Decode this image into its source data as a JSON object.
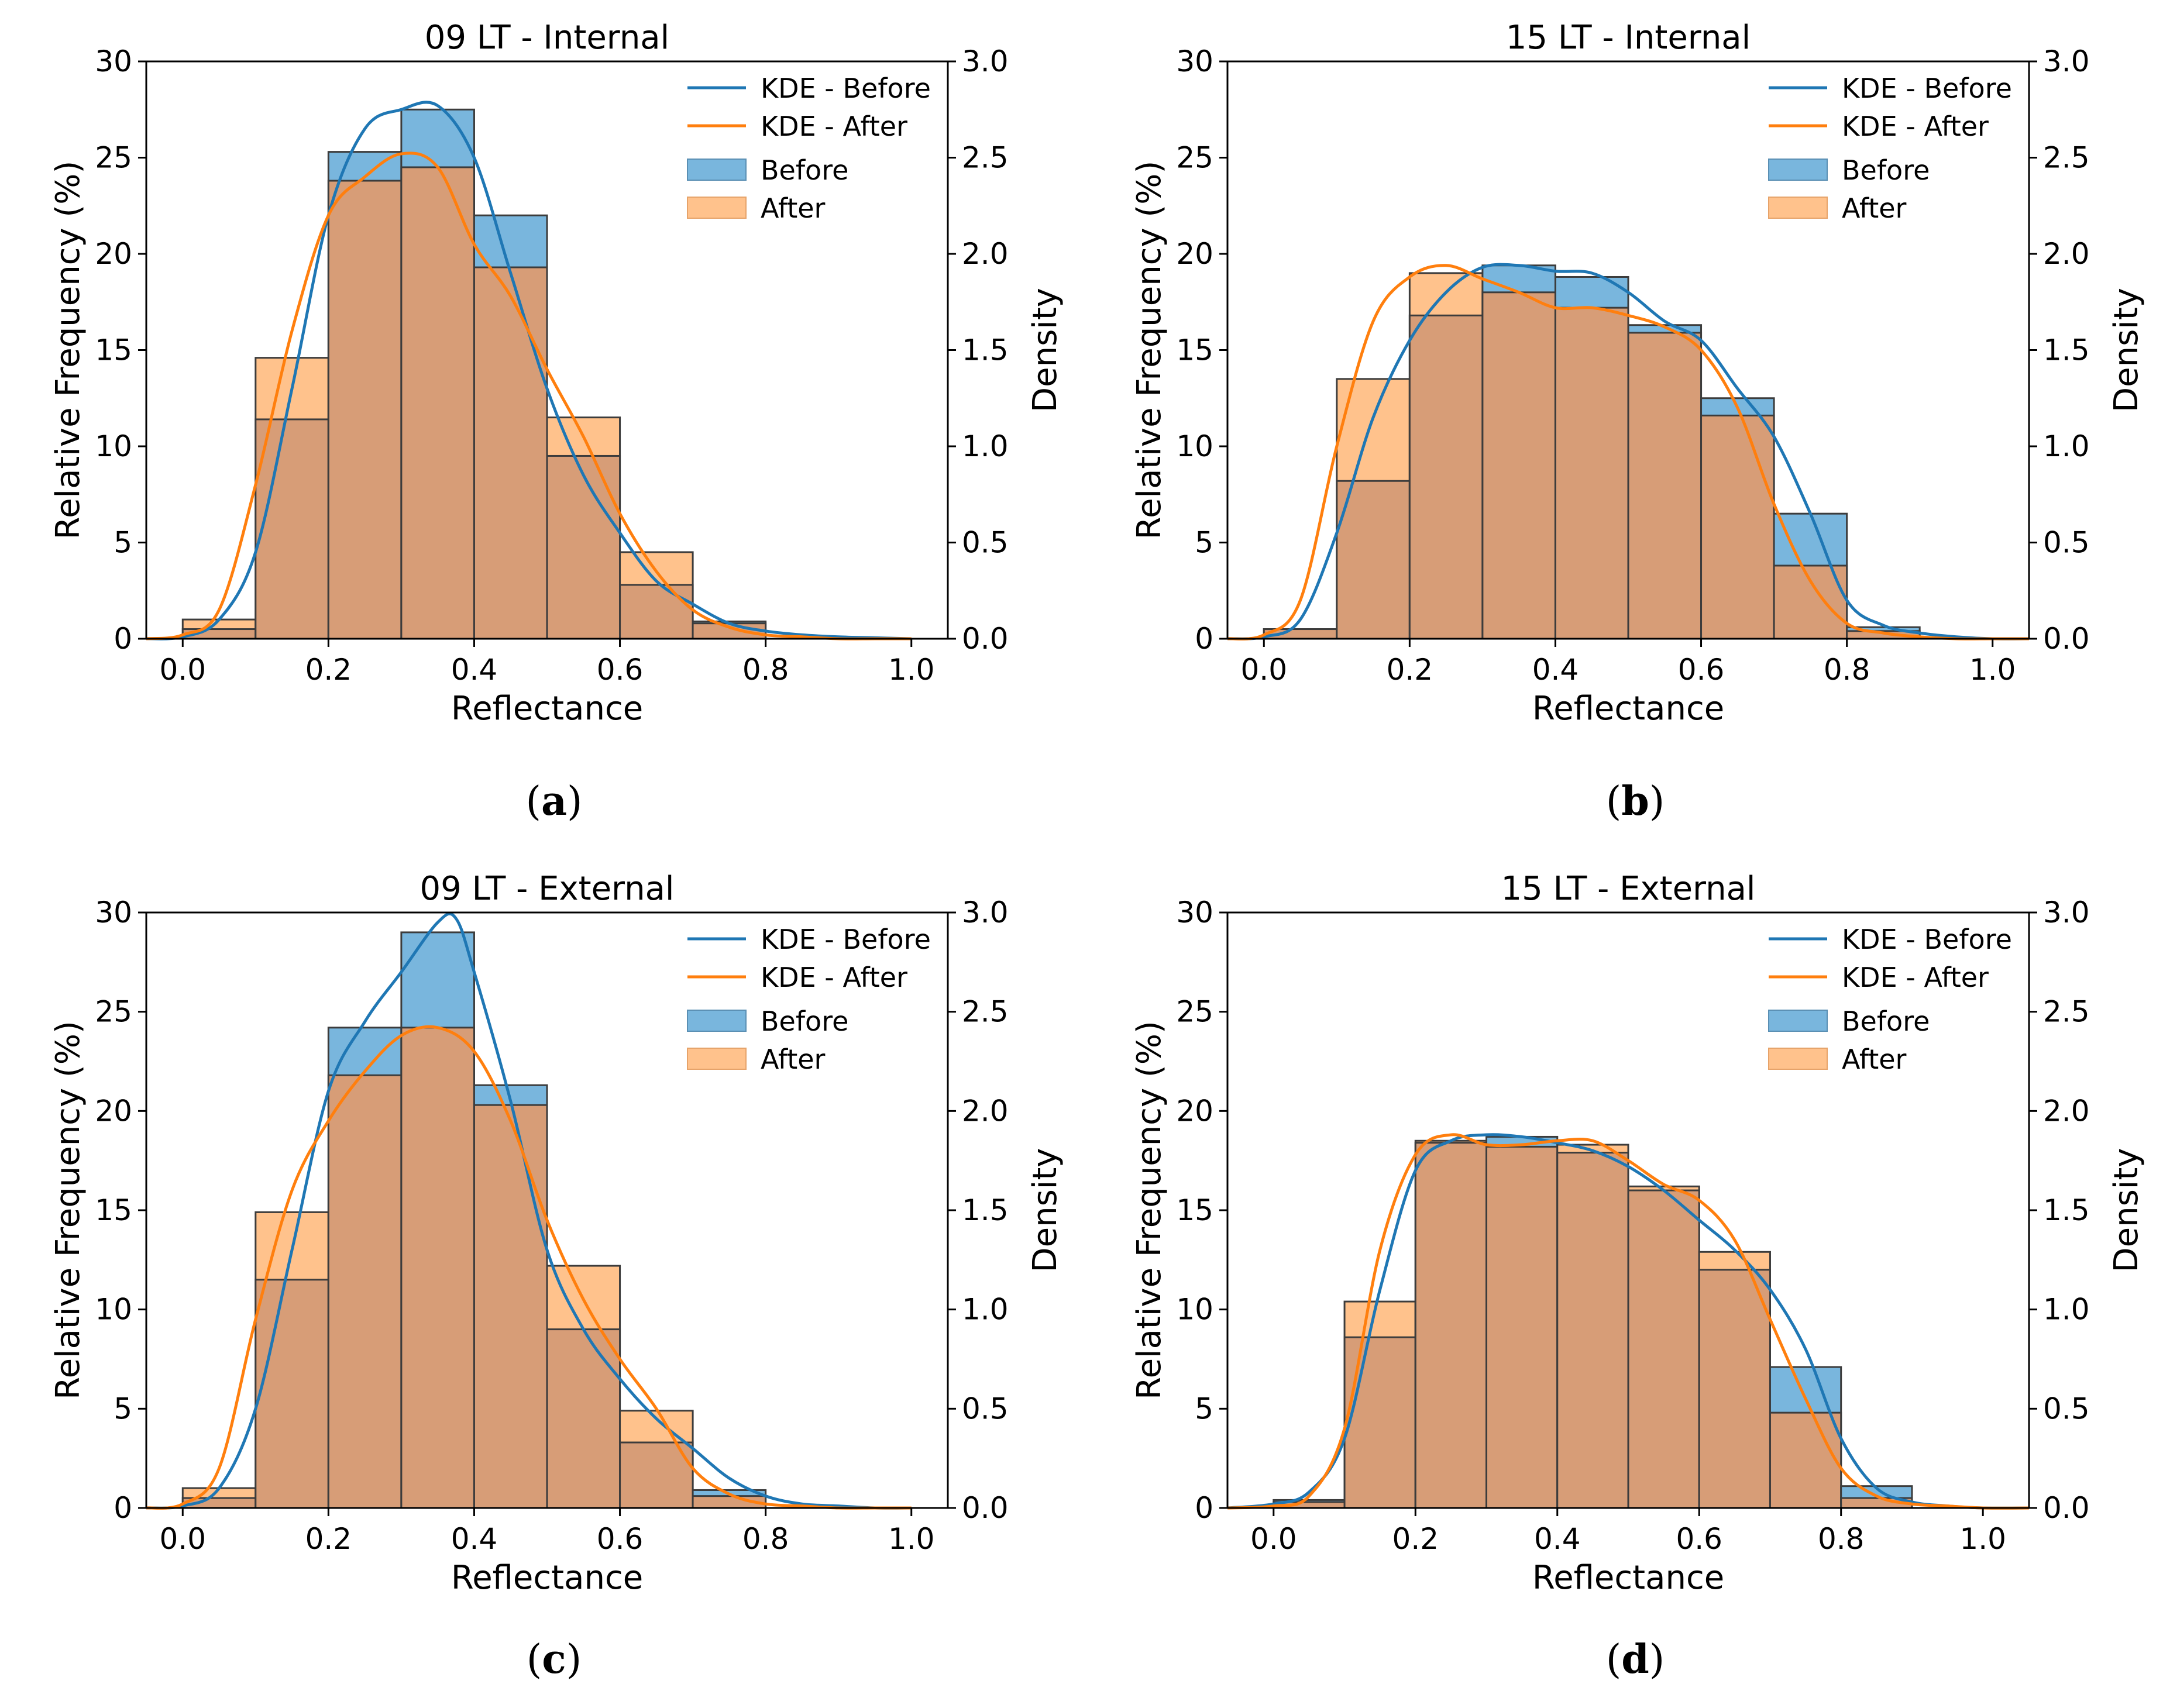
{
  "figure": {
    "colors": {
      "before": "#1f77b4",
      "after": "#ff7f0e",
      "before_fill": "#79b6dd",
      "after_fill": "#ffc28c",
      "overlap_fill": "#d79d77",
      "edge": "#3c3c3c"
    }
  },
  "chart_data": [
    {
      "id": "a",
      "type": "histogram",
      "title": "09 LT - Internal",
      "caption": "a",
      "xlabel": "Reflectance",
      "ylabel": "Relative Frequency (%)",
      "y2label": "Density",
      "xlim": [
        -0.05,
        1.05
      ],
      "ylim": [
        0,
        30
      ],
      "y2lim": [
        0,
        3.0
      ],
      "xticks": [
        "0.0",
        "0.2",
        "0.4",
        "0.6",
        "0.8",
        "1.0"
      ],
      "xtick_values": [
        0,
        0.2,
        0.4,
        0.6,
        0.8,
        1.0
      ],
      "yticks": [
        "0",
        "5",
        "10",
        "15",
        "20",
        "25",
        "30"
      ],
      "y2ticks": [
        "0.0",
        "0.5",
        "1.0",
        "1.5",
        "2.0",
        "2.5",
        "3.0"
      ],
      "legend": [
        "KDE - Before",
        "KDE - After",
        "Before",
        "After"
      ],
      "legend_position": "top-right",
      "bin_edges": [
        0,
        0.1,
        0.2,
        0.3,
        0.4,
        0.5,
        0.6,
        0.7,
        0.8
      ],
      "series": [
        {
          "name": "Before",
          "values": [
            0.5,
            11.4,
            25.3,
            27.5,
            22.0,
            9.5,
            2.8,
            0.9
          ]
        },
        {
          "name": "After",
          "values": [
            1.0,
            14.6,
            23.8,
            24.5,
            19.3,
            11.5,
            4.5,
            0.8
          ]
        }
      ],
      "kde": [
        {
          "name": "KDE - Before",
          "x": [
            -0.05,
            0.0,
            0.05,
            0.1,
            0.15,
            0.2,
            0.25,
            0.3,
            0.35,
            0.4,
            0.45,
            0.5,
            0.55,
            0.6,
            0.65,
            0.7,
            0.75,
            0.8,
            0.85,
            0.9,
            0.95,
            1.0
          ],
          "y": [
            0.0,
            0.01,
            0.1,
            0.45,
            1.3,
            2.2,
            2.65,
            2.75,
            2.77,
            2.5,
            1.9,
            1.3,
            0.85,
            0.55,
            0.3,
            0.18,
            0.08,
            0.04,
            0.02,
            0.01,
            0.005,
            0.0
          ]
        },
        {
          "name": "KDE - After",
          "x": [
            -0.05,
            0.0,
            0.05,
            0.1,
            0.15,
            0.2,
            0.25,
            0.3,
            0.35,
            0.4,
            0.45,
            0.5,
            0.55,
            0.6,
            0.65,
            0.7,
            0.75,
            0.8,
            0.85,
            0.9,
            0.95,
            1.0
          ],
          "y": [
            0.0,
            0.02,
            0.15,
            0.8,
            1.6,
            2.2,
            2.4,
            2.52,
            2.45,
            2.05,
            1.78,
            1.4,
            1.05,
            0.65,
            0.35,
            0.15,
            0.06,
            0.02,
            0.01,
            0.0,
            0.0,
            0.0
          ]
        }
      ]
    },
    {
      "id": "b",
      "type": "histogram",
      "title": "15 LT - Internal",
      "caption": "b",
      "xlabel": "Reflectance",
      "ylabel": "Relative Frequency (%)",
      "y2label": "Density",
      "xlim": [
        -0.05,
        1.05
      ],
      "ylim": [
        0,
        30
      ],
      "y2lim": [
        0,
        3.0
      ],
      "xticks": [
        "0.0",
        "0.2",
        "0.4",
        "0.6",
        "0.8",
        "1.0"
      ],
      "xtick_values": [
        0,
        0.2,
        0.4,
        0.6,
        0.8,
        1.0
      ],
      "yticks": [
        "0",
        "5",
        "10",
        "15",
        "20",
        "25",
        "30"
      ],
      "y2ticks": [
        "0.0",
        "0.5",
        "1.0",
        "1.5",
        "2.0",
        "2.5",
        "3.0"
      ],
      "legend": [
        "KDE - Before",
        "KDE - After",
        "Before",
        "After"
      ],
      "legend_position": "top-right",
      "bin_edges": [
        0,
        0.1,
        0.2,
        0.3,
        0.4,
        0.5,
        0.6,
        0.7,
        0.8,
        0.9
      ],
      "series": [
        {
          "name": "Before",
          "values": [
            0.5,
            8.2,
            16.8,
            19.4,
            18.8,
            16.3,
            12.5,
            6.5,
            0.6
          ]
        },
        {
          "name": "After",
          "values": [
            0.5,
            13.5,
            19.0,
            18.0,
            17.2,
            15.9,
            11.6,
            3.8,
            0.4
          ]
        }
      ],
      "kde": [
        {
          "name": "KDE - Before",
          "x": [
            -0.05,
            0.0,
            0.05,
            0.1,
            0.15,
            0.2,
            0.25,
            0.3,
            0.35,
            0.4,
            0.45,
            0.5,
            0.55,
            0.6,
            0.65,
            0.7,
            0.75,
            0.8,
            0.85,
            0.9,
            0.95,
            1.0,
            1.05
          ],
          "y": [
            0.0,
            0.01,
            0.1,
            0.55,
            1.15,
            1.55,
            1.8,
            1.93,
            1.94,
            1.91,
            1.9,
            1.8,
            1.65,
            1.55,
            1.3,
            1.05,
            0.65,
            0.2,
            0.07,
            0.03,
            0.01,
            0.0,
            0.0
          ]
        },
        {
          "name": "KDE - After",
          "x": [
            -0.05,
            0.0,
            0.05,
            0.1,
            0.15,
            0.2,
            0.25,
            0.3,
            0.35,
            0.4,
            0.45,
            0.5,
            0.55,
            0.6,
            0.65,
            0.7,
            0.75,
            0.8,
            0.85,
            0.9,
            0.95,
            1.0,
            1.05
          ],
          "y": [
            0.0,
            0.02,
            0.2,
            1.0,
            1.65,
            1.88,
            1.94,
            1.87,
            1.8,
            1.72,
            1.72,
            1.68,
            1.62,
            1.5,
            1.2,
            0.7,
            0.3,
            0.08,
            0.03,
            0.01,
            0.0,
            0.0,
            0.0
          ]
        }
      ]
    },
    {
      "id": "c",
      "type": "histogram",
      "title": "09 LT - External",
      "caption": "c",
      "xlabel": "Reflectance",
      "ylabel": "Relative Frequency (%)",
      "y2label": "Density",
      "xlim": [
        -0.05,
        1.05
      ],
      "ylim": [
        0,
        30
      ],
      "y2lim": [
        0,
        3.0
      ],
      "xticks": [
        "0.0",
        "0.2",
        "0.4",
        "0.6",
        "0.8",
        "1.0"
      ],
      "xtick_values": [
        0,
        0.2,
        0.4,
        0.6,
        0.8,
        1.0
      ],
      "yticks": [
        "0",
        "5",
        "10",
        "15",
        "20",
        "25",
        "30"
      ],
      "y2ticks": [
        "0.0",
        "0.5",
        "1.0",
        "1.5",
        "2.0",
        "2.5",
        "3.0"
      ],
      "legend": [
        "KDE - Before",
        "KDE - After",
        "Before",
        "After"
      ],
      "legend_position": "top-right",
      "bin_edges": [
        0,
        0.1,
        0.2,
        0.3,
        0.4,
        0.5,
        0.6,
        0.7,
        0.8
      ],
      "series": [
        {
          "name": "Before",
          "values": [
            0.5,
            11.5,
            24.2,
            29.0,
            21.3,
            9.0,
            3.3,
            0.9
          ]
        },
        {
          "name": "After",
          "values": [
            1.0,
            14.9,
            21.8,
            24.2,
            20.3,
            12.2,
            4.9,
            0.6
          ]
        }
      ],
      "kde": [
        {
          "name": "KDE - Before",
          "x": [
            -0.05,
            0.0,
            0.05,
            0.1,
            0.15,
            0.2,
            0.25,
            0.3,
            0.35,
            0.375,
            0.4,
            0.45,
            0.5,
            0.55,
            0.6,
            0.65,
            0.7,
            0.75,
            0.8,
            0.85,
            0.9,
            0.95,
            1.0
          ],
          "y": [
            0.0,
            0.01,
            0.1,
            0.5,
            1.3,
            2.1,
            2.45,
            2.7,
            2.95,
            2.97,
            2.7,
            2.05,
            1.3,
            0.9,
            0.65,
            0.45,
            0.3,
            0.15,
            0.06,
            0.02,
            0.01,
            0.0,
            0.0
          ]
        },
        {
          "name": "KDE - After",
          "x": [
            -0.05,
            0.0,
            0.05,
            0.1,
            0.15,
            0.2,
            0.25,
            0.3,
            0.35,
            0.4,
            0.45,
            0.5,
            0.55,
            0.6,
            0.65,
            0.7,
            0.75,
            0.8,
            0.85,
            0.9,
            0.95,
            1.0
          ],
          "y": [
            0.0,
            0.02,
            0.2,
            0.95,
            1.6,
            1.95,
            2.2,
            2.38,
            2.42,
            2.3,
            1.95,
            1.45,
            1.05,
            0.75,
            0.5,
            0.2,
            0.07,
            0.02,
            0.01,
            0.0,
            0.0,
            0.0
          ]
        }
      ]
    },
    {
      "id": "d",
      "type": "histogram",
      "title": "15 LT - External",
      "caption": "d",
      "xlabel": "Reflectance",
      "ylabel": "Relative Frequency (%)",
      "y2label": "Density",
      "xlim": [
        -0.065,
        1.065
      ],
      "ylim": [
        0,
        30
      ],
      "y2lim": [
        0,
        3.0
      ],
      "xticks": [
        "0.0",
        "0.2",
        "0.4",
        "0.6",
        "0.8",
        "1.0"
      ],
      "xtick_values": [
        0,
        0.2,
        0.4,
        0.6,
        0.8,
        1.0
      ],
      "yticks": [
        "0",
        "5",
        "10",
        "15",
        "20",
        "25",
        "30"
      ],
      "y2ticks": [
        "0.0",
        "0.5",
        "1.0",
        "1.5",
        "2.0",
        "2.5",
        "3.0"
      ],
      "legend": [
        "KDE - Before",
        "KDE - After",
        "Before",
        "After"
      ],
      "legend_position": "top-right",
      "bin_edges": [
        0,
        0.1,
        0.2,
        0.3,
        0.4,
        0.5,
        0.6,
        0.7,
        0.8,
        0.9
      ],
      "series": [
        {
          "name": "Before",
          "values": [
            0.4,
            8.6,
            18.4,
            18.7,
            17.9,
            16.0,
            12.0,
            7.1,
            1.1
          ]
        },
        {
          "name": "After",
          "values": [
            0.3,
            10.4,
            18.5,
            18.2,
            18.3,
            16.2,
            12.9,
            4.8,
            0.5
          ]
        }
      ],
      "kde": [
        {
          "name": "KDE - Before",
          "x": [
            -0.065,
            0.0,
            0.05,
            0.1,
            0.15,
            0.2,
            0.25,
            0.3,
            0.35,
            0.4,
            0.45,
            0.5,
            0.55,
            0.6,
            0.65,
            0.7,
            0.75,
            0.8,
            0.85,
            0.9,
            0.95,
            1.0,
            1.065
          ],
          "y": [
            0.0,
            0.02,
            0.08,
            0.35,
            1.1,
            1.7,
            1.85,
            1.88,
            1.87,
            1.84,
            1.8,
            1.72,
            1.6,
            1.45,
            1.3,
            1.1,
            0.8,
            0.35,
            0.1,
            0.03,
            0.01,
            0.0,
            0.0
          ]
        },
        {
          "name": "KDE - After",
          "x": [
            -0.065,
            0.0,
            0.05,
            0.1,
            0.15,
            0.2,
            0.25,
            0.3,
            0.35,
            0.4,
            0.45,
            0.5,
            0.55,
            0.6,
            0.65,
            0.7,
            0.75,
            0.8,
            0.85,
            0.9,
            0.95,
            1.0,
            1.065
          ],
          "y": [
            0.0,
            0.01,
            0.06,
            0.4,
            1.3,
            1.78,
            1.88,
            1.83,
            1.83,
            1.85,
            1.85,
            1.75,
            1.63,
            1.55,
            1.35,
            0.95,
            0.55,
            0.2,
            0.06,
            0.02,
            0.01,
            0.0,
            0.0
          ]
        }
      ]
    }
  ]
}
